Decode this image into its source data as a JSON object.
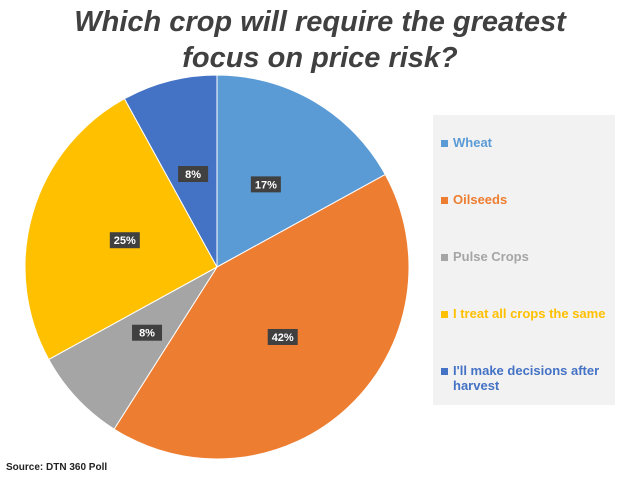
{
  "chart_data": {
    "type": "pie",
    "title": "Which crop will require the greatest focus on price risk?",
    "categories": [
      "Wheat",
      "Oilseeds",
      "Pulse Crops",
      "I treat all crops the same",
      "I'll make decisions after harvest"
    ],
    "values": [
      17,
      42,
      8,
      25,
      8
    ],
    "value_labels": [
      "17%",
      "42%",
      "8%",
      "25%",
      "8%"
    ],
    "colors": [
      "#5b9bd5",
      "#ed7d31",
      "#a5a5a5",
      "#ffc000",
      "#4472c4"
    ],
    "legend": "right",
    "source": "Source: DTN 360 Poll"
  }
}
